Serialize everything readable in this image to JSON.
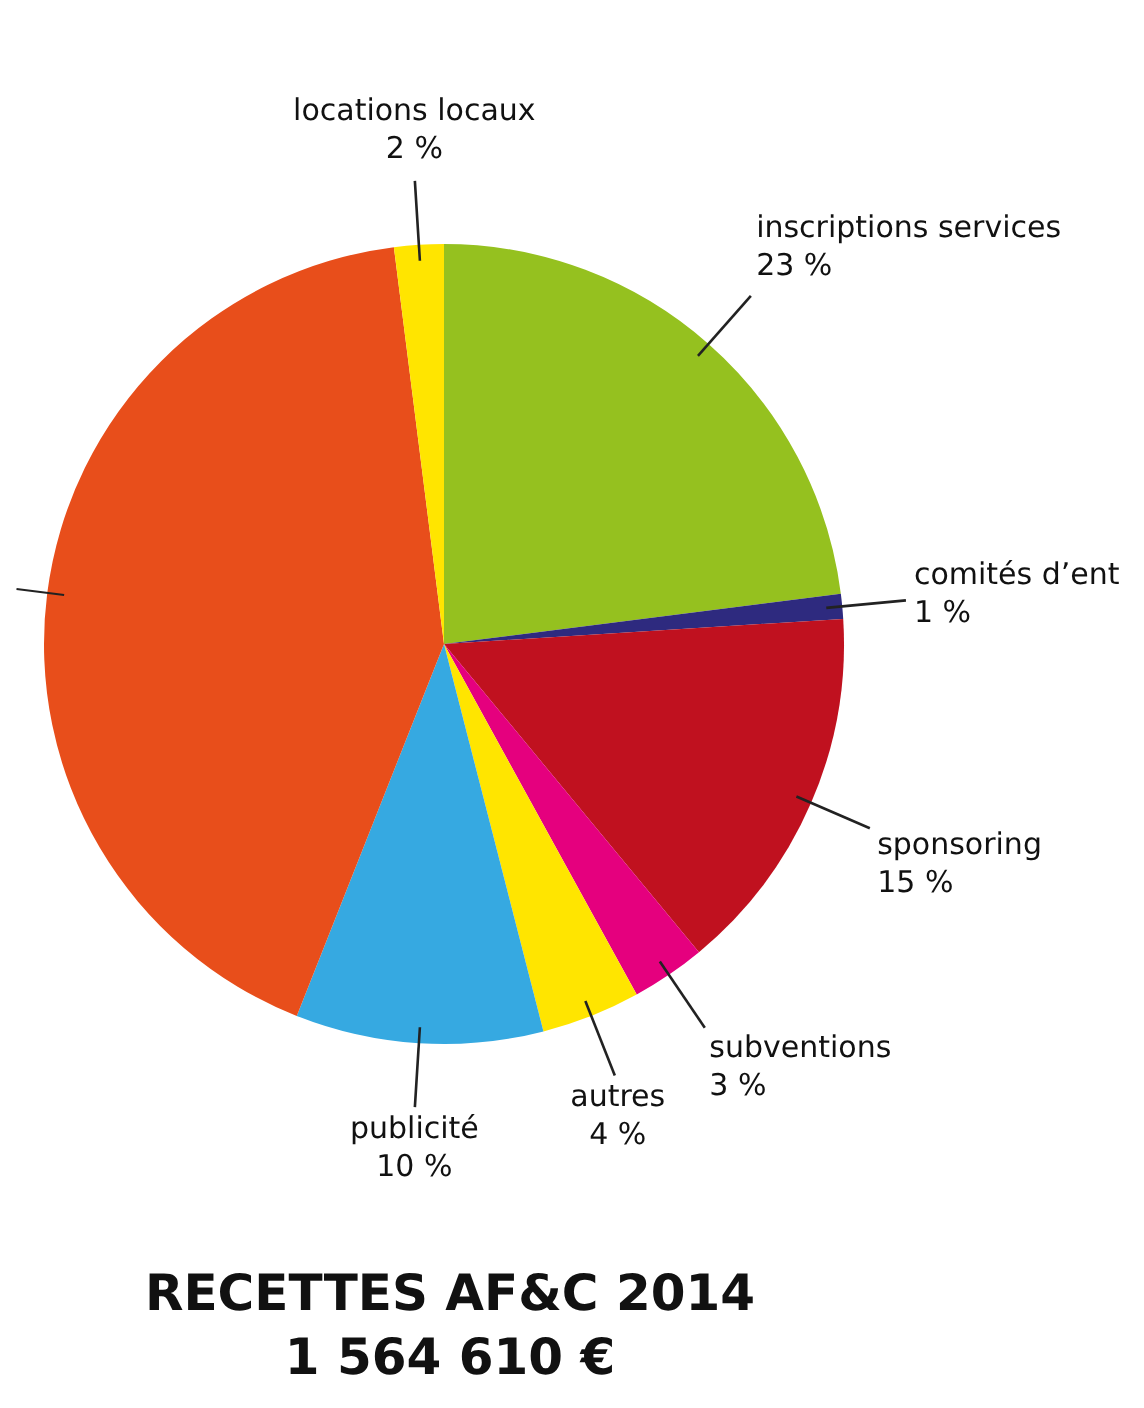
{
  "chart_data": {
    "type": "pie",
    "title": "RECETTES AF&C 2014",
    "subtitle": "1 564 610 €",
    "categories": [
      "inscriptions services",
      "comités d’ent",
      "sponsoring",
      "subventions",
      "autres",
      "publicité",
      null,
      "locations locaux"
    ],
    "values": [
      23,
      1,
      15,
      3,
      4,
      10,
      42,
      2
    ],
    "colors": [
      "#95c11f",
      "#2e2a7f",
      "#c0111f",
      "#e5007e",
      "#ffe500",
      "#36a9e1",
      "#e84e1b",
      "#ffe500"
    ],
    "value_labels": [
      "23 %",
      "1 %",
      "15 %",
      "3 %",
      "4 %",
      "10 %",
      null,
      "2 %"
    ],
    "legend": false
  }
}
